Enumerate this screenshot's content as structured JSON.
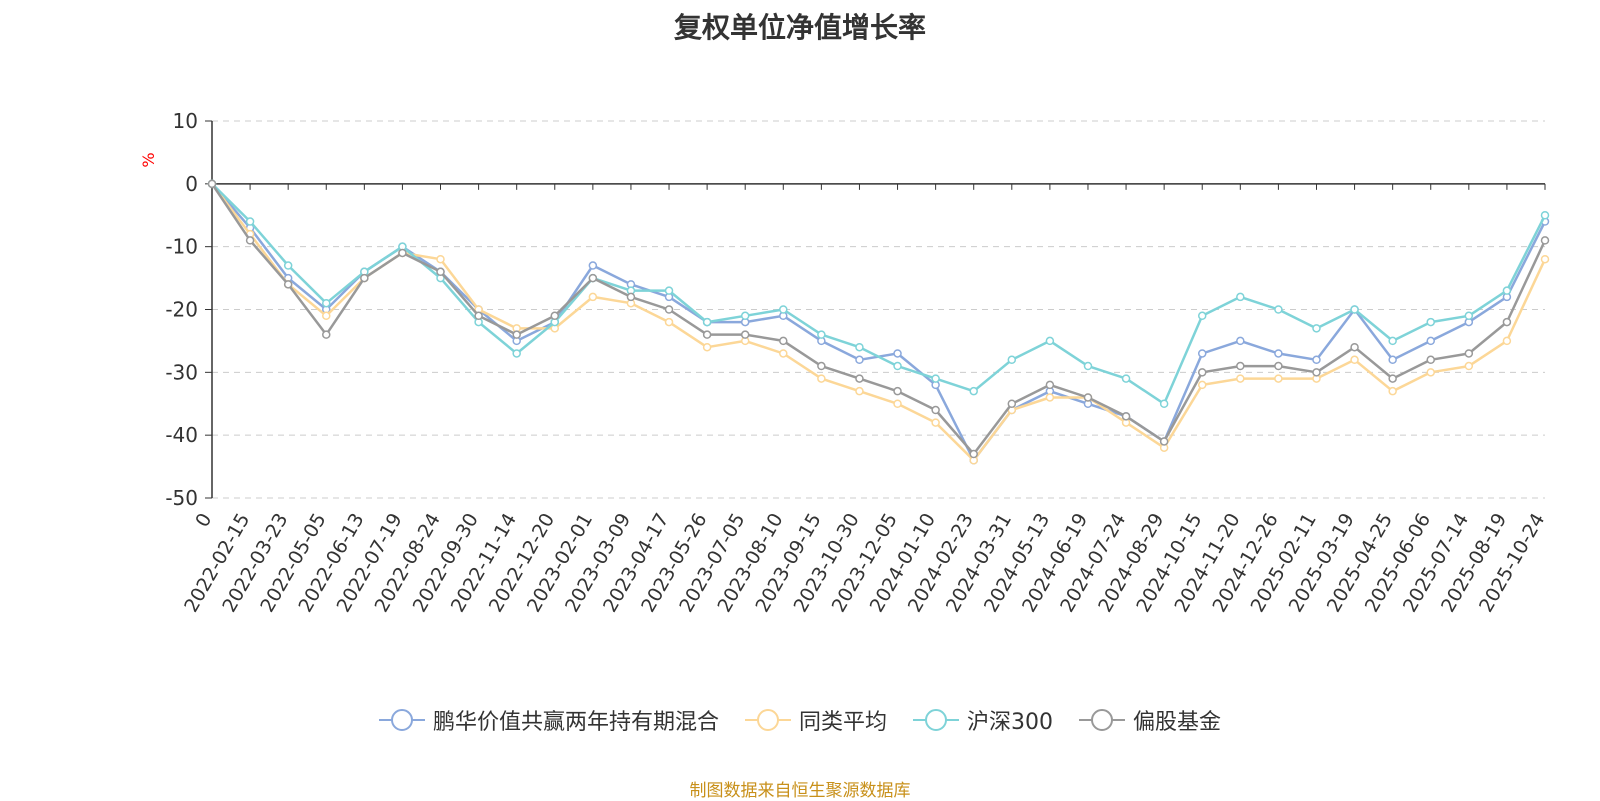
{
  "title": "复权单位净值增长率",
  "source_text": "制图数据来自恒生聚源数据库",
  "colors": {
    "fund": "#8aa8dc",
    "peer": "#fcd797",
    "index": "#7ed3d8",
    "stock": "#999999",
    "unit": "#ff0000"
  },
  "chart_data": {
    "type": "line",
    "title": "复权单位净值增长率",
    "ylabel": "%",
    "ylim": [
      -50,
      10
    ],
    "yticks": [
      10,
      0,
      -10,
      -20,
      -30,
      -40,
      -50
    ],
    "grid": true,
    "legend_position": "bottom",
    "categories": [
      "0",
      "2022-02-15",
      "2022-03-23",
      "2022-05-05",
      "2022-06-13",
      "2022-07-19",
      "2022-08-24",
      "2022-09-30",
      "2022-11-14",
      "2022-12-20",
      "2023-02-01",
      "2023-03-09",
      "2023-04-17",
      "2023-05-26",
      "2023-07-05",
      "2023-08-10",
      "2023-09-15",
      "2023-10-30",
      "2023-12-05",
      "2024-01-10",
      "2024-02-23",
      "2024-03-31",
      "2024-05-13",
      "2024-06-19",
      "2024-07-24",
      "2024-08-29",
      "2024-10-15",
      "2024-11-20",
      "2024-12-26",
      "2025-02-11",
      "2025-03-19",
      "2025-04-25",
      "2025-06-06",
      "2025-07-14",
      "2025-08-19",
      "2025-10-24"
    ],
    "series": [
      {
        "name": "鹏华价值共赢两年持有期混合",
        "color_key": "fund",
        "values": [
          0,
          -7,
          -15,
          -20,
          -14,
          -10,
          -14,
          -20,
          -25,
          -22,
          -13,
          -16,
          -18,
          -22,
          -22,
          -21,
          -25,
          -28,
          -27,
          -32,
          -44,
          -36,
          -33,
          -35,
          -37,
          -41,
          -27,
          -25,
          -27,
          -28,
          -20,
          -28,
          -25,
          -22,
          -18,
          -6
        ]
      },
      {
        "name": "同类平均",
        "color_key": "peer",
        "values": [
          0,
          -8,
          -16,
          -21,
          -15,
          -11,
          -12,
          -20,
          -23,
          -23,
          -18,
          -19,
          -22,
          -26,
          -25,
          -27,
          -31,
          -33,
          -35,
          -38,
          -44,
          -36,
          -34,
          -34,
          -38,
          -42,
          -32,
          -31,
          -31,
          -31,
          -28,
          -33,
          -30,
          -29,
          -25,
          -12
        ]
      },
      {
        "name": "沪深300",
        "color_key": "index",
        "values": [
          0,
          -6,
          -13,
          -19,
          -14,
          -10,
          -15,
          -22,
          -27,
          -22,
          -15,
          -17,
          -17,
          -22,
          -21,
          -20,
          -24,
          -26,
          -29,
          -31,
          -33,
          -28,
          -25,
          -29,
          -31,
          -35,
          -21,
          -18,
          -20,
          -23,
          -20,
          -25,
          -22,
          -21,
          -17,
          -5
        ]
      },
      {
        "name": "偏股基金",
        "color_key": "stock",
        "values": [
          0,
          -9,
          -16,
          -24,
          -15,
          -11,
          -14,
          -21,
          -24,
          -21,
          -15,
          -18,
          -20,
          -24,
          -24,
          -25,
          -29,
          -31,
          -33,
          -36,
          -43,
          -35,
          -32,
          -34,
          -37,
          -41,
          -30,
          -29,
          -29,
          -30,
          -26,
          -31,
          -28,
          -27,
          -22,
          -9
        ]
      }
    ]
  }
}
